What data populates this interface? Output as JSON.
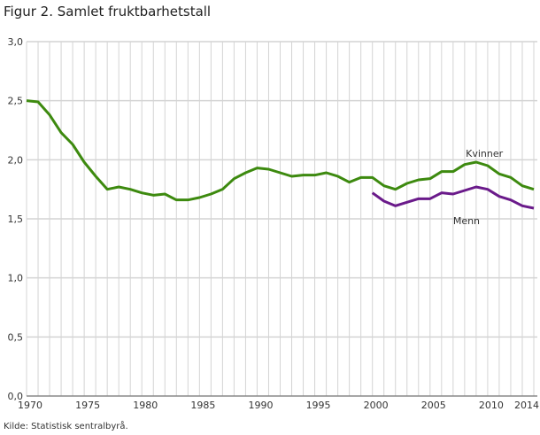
{
  "chart_data": {
    "type": "line",
    "title": "Figur 2. Samlet fruktbarhetstall",
    "source": "Kilde: Statistisk sentralbyrå.",
    "xlabel": "",
    "ylabel": "",
    "xlim": [
      1970,
      2014
    ],
    "ylim": [
      0,
      3
    ],
    "yticks": [
      "0,0",
      "0,5",
      "1,0",
      "1,5",
      "2,0",
      "2,5",
      "3,0"
    ],
    "xticks": [
      "1970",
      "1975",
      "1980",
      "1985",
      "1990",
      "1995",
      "2000",
      "2005",
      "2010",
      "2014"
    ],
    "grid": true,
    "series": [
      {
        "name": "Kvinner",
        "color": "#3d8a0f",
        "x": [
          1970,
          1971,
          1972,
          1973,
          1974,
          1975,
          1976,
          1977,
          1978,
          1979,
          1980,
          1981,
          1982,
          1983,
          1984,
          1985,
          1986,
          1987,
          1988,
          1989,
          1990,
          1991,
          1992,
          1993,
          1994,
          1995,
          1996,
          1997,
          1998,
          1999,
          2000,
          2001,
          2002,
          2003,
          2004,
          2005,
          2006,
          2007,
          2008,
          2009,
          2010,
          2011,
          2012,
          2013,
          2014
        ],
        "values": [
          2.5,
          2.49,
          2.38,
          2.23,
          2.13,
          1.98,
          1.86,
          1.75,
          1.77,
          1.75,
          1.72,
          1.7,
          1.71,
          1.66,
          1.66,
          1.68,
          1.71,
          1.75,
          1.84,
          1.89,
          1.93,
          1.92,
          1.89,
          1.86,
          1.87,
          1.87,
          1.89,
          1.86,
          1.81,
          1.85,
          1.85,
          1.78,
          1.75,
          1.8,
          1.83,
          1.84,
          1.9,
          1.9,
          1.96,
          1.98,
          1.95,
          1.88,
          1.85,
          1.78,
          1.75
        ]
      },
      {
        "name": "Menn",
        "color": "#6a1a8a",
        "x": [
          2000,
          2001,
          2002,
          2003,
          2004,
          2005,
          2006,
          2007,
          2008,
          2009,
          2010,
          2011,
          2012,
          2013,
          2014
        ],
        "values": [
          1.72,
          1.65,
          1.61,
          1.64,
          1.67,
          1.67,
          1.72,
          1.71,
          1.74,
          1.77,
          1.75,
          1.69,
          1.66,
          1.61,
          1.59
        ]
      }
    ]
  }
}
